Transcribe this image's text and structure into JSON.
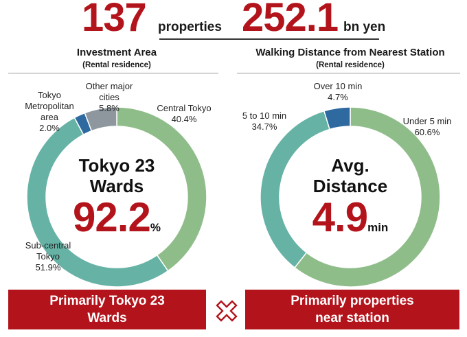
{
  "headline": {
    "count_value": "137",
    "count_unit": "properties",
    "amount_value": "252.1",
    "amount_unit": "bn yen"
  },
  "chart_data": [
    {
      "type": "pie",
      "title": "Investment Area",
      "subtitle": "(Rental residence)",
      "center_text": [
        "Tokyo 23",
        "Wards"
      ],
      "center_value": "92.2",
      "center_unit": "%",
      "slices": [
        {
          "label": [
            "Central Tokyo"
          ],
          "percent_label": "40.4%",
          "value": 40.4,
          "color": "#8fbd8a"
        },
        {
          "label": [
            "Sub-central",
            "Tokyo"
          ],
          "percent_label": "51.9%",
          "value": 51.9,
          "color": "#66b3a6"
        },
        {
          "label": [
            "Tokyo",
            "Metropolitan",
            "area"
          ],
          "percent_label": "2.0%",
          "value": 2.0,
          "color": "#2e6aa0"
        },
        {
          "label": [
            "Other major",
            "cities"
          ],
          "percent_label": "5.8%",
          "value": 5.8,
          "color": "#8e979e"
        }
      ]
    },
    {
      "type": "pie",
      "title": "Walking Distance from Nearest Station",
      "subtitle": "(Rental residence)",
      "center_text": [
        "Avg.",
        "Distance"
      ],
      "center_value": "4.9",
      "center_unit": "min",
      "slices": [
        {
          "label": [
            "Under 5 min"
          ],
          "percent_label": "60.6%",
          "value": 60.6,
          "color": "#8fbd8a"
        },
        {
          "label": [
            "5 to 10 min"
          ],
          "percent_label": "34.7%",
          "value": 34.7,
          "color": "#66b3a6"
        },
        {
          "label": [
            "Over 10 min"
          ],
          "percent_label": "4.7%",
          "value": 4.7,
          "color": "#2e6aa0"
        }
      ]
    }
  ],
  "boxes": {
    "left": [
      "Primarily Tokyo 23",
      "Wards"
    ],
    "right": [
      "Primarily properties",
      "near station"
    ]
  },
  "multiply_icon": "multiply-icon",
  "accent_color": "#b3141c"
}
